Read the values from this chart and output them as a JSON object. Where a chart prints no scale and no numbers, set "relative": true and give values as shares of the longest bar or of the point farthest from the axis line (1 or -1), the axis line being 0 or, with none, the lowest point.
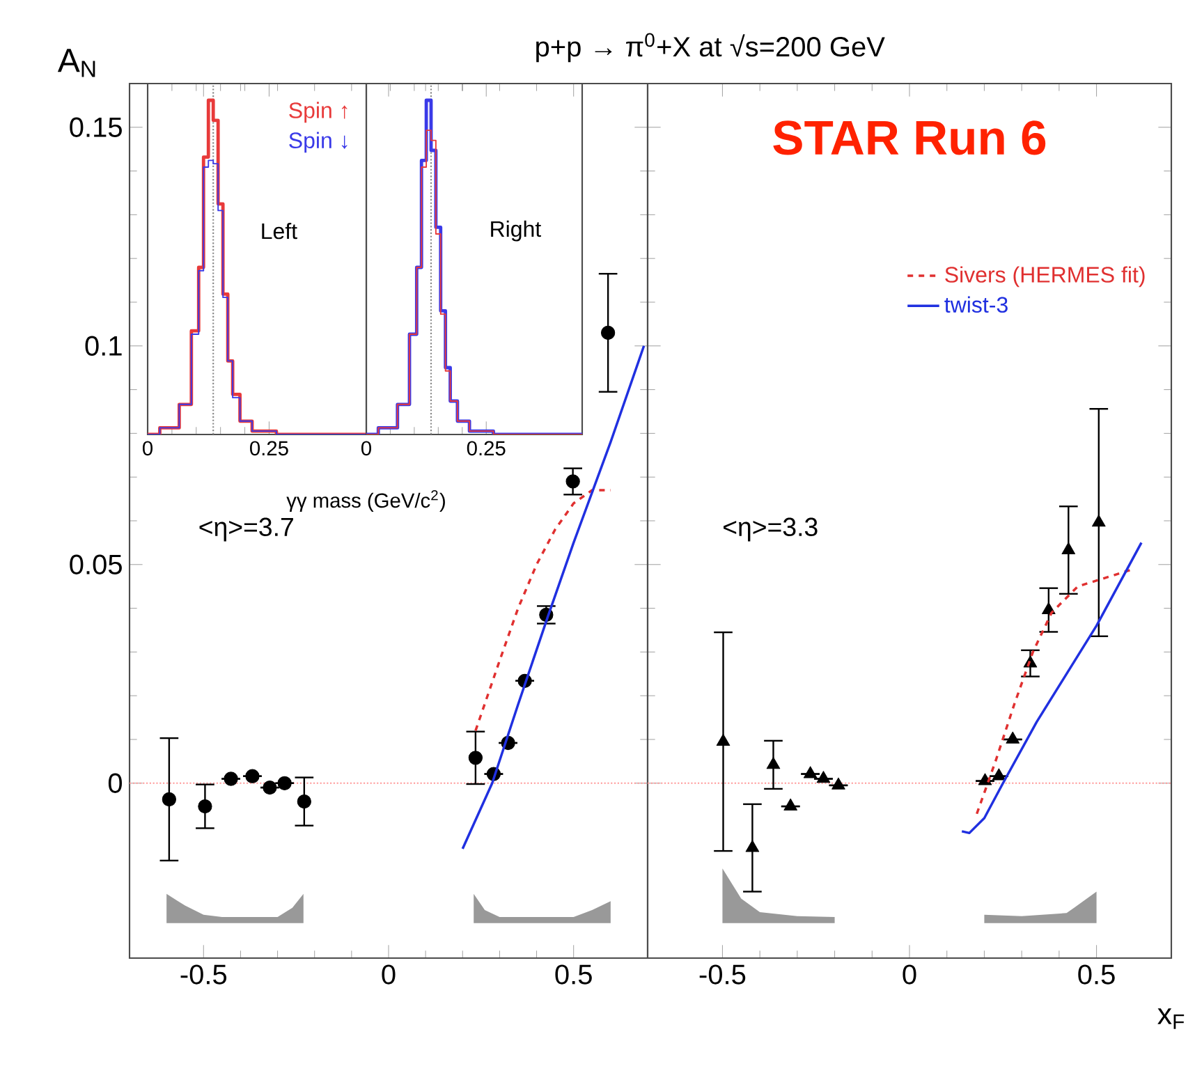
{
  "chart_data": [
    {
      "type": "scatter",
      "title": "p+p → π$^{0}$+X at √s=200 GeV",
      "ylabel": "A$_{N}$",
      "xlim": [
        -0.7,
        0.7
      ],
      "ylim": [
        -0.04,
        0.16
      ],
      "xticks": [
        -0.5,
        0,
        0.5
      ],
      "yticks": [
        0,
        0.05,
        0.1,
        0.15
      ],
      "annotations": [
        "<η>=3.7"
      ],
      "ref_lines": [
        {
          "axis": "y",
          "value": 0,
          "color": "#ff9999",
          "line_style": "dotted"
        }
      ],
      "series": [
        {
          "type": "scatter",
          "color": "#000000",
          "marker": "circle",
          "x": [
            -0.593,
            -0.496,
            -0.426,
            -0.368,
            -0.321,
            -0.281,
            -0.228,
            0.235,
            0.284,
            0.323,
            0.368,
            0.426,
            0.498,
            0.593
          ],
          "values": [
            -0.0037,
            -0.0053,
            0.001,
            0.0016,
            -0.001,
            0,
            -0.0042,
            0.0058,
            0.0021,
            0.0092,
            0.0234,
            0.0385,
            0.069,
            0.103
          ],
          "errors": [
            0.014,
            0.005,
            null,
            null,
            null,
            null,
            0.0055,
            0.006,
            null,
            null,
            null,
            0.002,
            0.003,
            0.0135
          ]
        },
        {
          "type": "line",
          "color": "#e03030",
          "line_style": "dashed",
          "x": [
            0.235,
            0.3,
            0.35,
            0.4,
            0.45,
            0.5,
            0.55,
            0.6
          ],
          "values": [
            0.012,
            0.028,
            0.04,
            0.05,
            0.058,
            0.064,
            0.067,
            0.067
          ]
        },
        {
          "type": "line",
          "color": "#2030e0",
          "line_style": "solid",
          "x": [
            0.2,
            0.28,
            0.35,
            0.43,
            0.5,
            0.6,
            0.69
          ],
          "values": [
            -0.015,
            0,
            0.018,
            0.038,
            0.055,
            0.078,
            0.1
          ]
        },
        {
          "type": "area",
          "color": "#999999",
          "x": [
            -0.6,
            -0.6,
            -0.55,
            -0.5,
            -0.45,
            -0.3,
            -0.26,
            -0.23,
            -0.23
          ],
          "values": [
            -0.032,
            -0.0253,
            -0.028,
            -0.0301,
            -0.0306,
            -0.0306,
            -0.0285,
            -0.0253,
            -0.032
          ]
        },
        {
          "type": "area",
          "color": "#999999",
          "x": [
            0.23,
            0.23,
            0.26,
            0.3,
            0.5,
            0.55,
            0.6,
            0.6
          ],
          "values": [
            -0.032,
            -0.0253,
            -0.029,
            -0.0306,
            -0.0306,
            -0.029,
            -0.027,
            -0.032
          ]
        }
      ]
    },
    {
      "type": "scatter",
      "xlabel": "x$_{F}$",
      "xlim": [
        -0.7,
        0.7
      ],
      "ylim": [
        -0.04,
        0.16
      ],
      "xticks": [
        -0.5,
        0,
        0.5
      ],
      "yticks": [
        0,
        0.05,
        0.1,
        0.15
      ],
      "tick_labels": "x",
      "legend": "top right",
      "annotations": [
        "<η>=3.3",
        "STAR Run 6"
      ],
      "ref_lines": [
        {
          "axis": "y",
          "value": 0,
          "color": "#ff9999",
          "line_style": "dotted"
        }
      ],
      "series": [
        {
          "type": "scatter",
          "color": "#000000",
          "marker": "triangle",
          "x": [
            -0.498,
            -0.42,
            -0.364,
            -0.318,
            -0.265,
            -0.23,
            -0.19,
            0.202,
            0.239,
            0.276,
            0.323,
            0.372,
            0.425,
            0.506
          ],
          "values": [
            0.0095,
            -0.0148,
            0.0042,
            -0.0053,
            0.0021,
            0.001,
            -0.0005,
            0.0005,
            0.0016,
            0.01,
            0.0274,
            0.0396,
            0.0533,
            0.0596
          ],
          "errors": [
            0.025,
            0.01,
            0.0055,
            null,
            null,
            null,
            null,
            null,
            null,
            null,
            0.003,
            0.005,
            0.01,
            0.026
          ]
        },
        {
          "type": "line",
          "name": "Sivers (HERMES fit)",
          "color": "#e03030",
          "line_style": "dashed",
          "x": [
            0.18,
            0.23,
            0.28,
            0.33,
            0.38,
            0.45,
            0.6
          ],
          "values": [
            -0.007,
            0.005,
            0.018,
            0.03,
            0.039,
            0.045,
            0.049
          ]
        },
        {
          "type": "line",
          "name": "twist-3",
          "color": "#2030e0",
          "line_style": "solid",
          "x": [
            0.14,
            0.16,
            0.2,
            0.25,
            0.34,
            0.42,
            0.5,
            0.62
          ],
          "values": [
            -0.011,
            -0.0114,
            -0.008,
            0,
            0.014,
            0.025,
            0.036,
            0.055
          ]
        },
        {
          "type": "area",
          "color": "#999999",
          "x": [
            -0.5,
            -0.5,
            -0.45,
            -0.4,
            -0.3,
            -0.2,
            -0.2
          ],
          "values": [
            -0.032,
            -0.0195,
            -0.0264,
            -0.0295,
            -0.0304,
            -0.0306,
            -0.032
          ]
        },
        {
          "type": "area",
          "color": "#999999",
          "x": [
            0.2,
            0.2,
            0.3,
            0.42,
            0.44,
            0.5,
            0.5
          ],
          "values": [
            -0.032,
            -0.0301,
            -0.0304,
            -0.0297,
            -0.0285,
            -0.0248,
            -0.032
          ]
        }
      ]
    },
    {
      "type": "step",
      "relative": true,
      "xlabel": "γγ mass (GeV/c$^{2}$)",
      "xlim": [
        0,
        0.45
      ],
      "xticks": [
        0,
        0.25
      ],
      "legend": "top right",
      "annotations": [
        "Left"
      ],
      "ref_lines": [
        {
          "axis": "x",
          "value": 0.135,
          "color": "#888888",
          "line_style": "dotted"
        }
      ],
      "x": [
        0,
        0.05,
        0.08,
        0.1,
        0.11,
        0.12,
        0.13,
        0.14,
        0.15,
        0.16,
        0.17,
        0.18,
        0.2,
        0.23,
        0.3,
        0.45
      ],
      "series": [
        {
          "name": "Spin ↑",
          "color": "#e83a3a",
          "values": [
            0,
            0.02,
            0.09,
            0.31,
            0.5,
            0.83,
            1,
            0.94,
            0.69,
            0.42,
            0.22,
            0.12,
            0.04,
            0.01,
            0,
            0
          ]
        },
        {
          "name": "Spin ↓",
          "color": "#3a3ae8",
          "values": [
            0,
            0.02,
            0.09,
            0.3,
            0.49,
            0.8,
            0.82,
            0.81,
            0.67,
            0.41,
            0.22,
            0.11,
            0.04,
            0.01,
            0,
            0
          ]
        }
      ]
    },
    {
      "type": "step",
      "relative": true,
      "xlim": [
        0,
        0.45
      ],
      "xticks": [
        0,
        0.25
      ],
      "annotations": [
        "Right"
      ],
      "ref_lines": [
        {
          "axis": "x",
          "value": 0.135,
          "color": "#888888",
          "line_style": "dotted"
        }
      ],
      "x": [
        0,
        0.05,
        0.08,
        0.1,
        0.11,
        0.12,
        0.13,
        0.14,
        0.15,
        0.16,
        0.17,
        0.18,
        0.2,
        0.23,
        0.3,
        0.45
      ],
      "series": [
        {
          "color": "#3a3ae8",
          "values": [
            0,
            0.02,
            0.09,
            0.3,
            0.5,
            0.82,
            1,
            0.85,
            0.62,
            0.37,
            0.2,
            0.1,
            0.04,
            0.01,
            0,
            0
          ]
        },
        {
          "color": "#e83a3a",
          "values": [
            0,
            0.02,
            0.09,
            0.3,
            0.5,
            0.8,
            0.91,
            0.88,
            0.6,
            0.36,
            0.19,
            0.1,
            0.04,
            0.01,
            0,
            0
          ]
        }
      ]
    }
  ]
}
